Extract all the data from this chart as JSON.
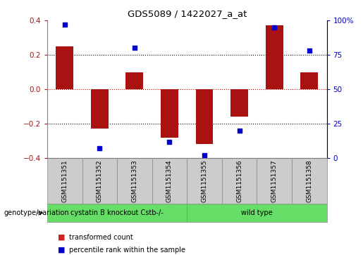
{
  "title": "GDS5089 / 1422027_a_at",
  "samples": [
    "GSM1151351",
    "GSM1151352",
    "GSM1151353",
    "GSM1151354",
    "GSM1151355",
    "GSM1151356",
    "GSM1151357",
    "GSM1151358"
  ],
  "transformed_count": [
    0.25,
    -0.23,
    0.1,
    -0.28,
    -0.32,
    -0.16,
    0.37,
    0.1
  ],
  "percentile_rank": [
    97,
    7,
    80,
    12,
    2,
    20,
    95,
    78
  ],
  "bar_color": "#aa1111",
  "scatter_color": "#0000cc",
  "ylim_left": [
    -0.4,
    0.4
  ],
  "ylim_right": [
    0,
    100
  ],
  "yticks_left": [
    -0.4,
    -0.2,
    0.0,
    0.2,
    0.4
  ],
  "yticks_right": [
    0,
    25,
    50,
    75,
    100
  ],
  "ytick_labels_right": [
    "0",
    "25",
    "50",
    "75",
    "100%"
  ],
  "group1_label": "cystatin B knockout Cstb-/-",
  "group2_label": "wild type",
  "group1_samples": 4,
  "group2_samples": 4,
  "group_row_label": "genotype/variation",
  "group_color": "#66dd66",
  "sample_box_color": "#cccccc",
  "legend_label1": "transformed count",
  "legend_label2": "percentile rank within the sample",
  "background_color": "#ffffff",
  "bar_color_legend": "#cc2222",
  "scatter_color_legend": "#0000cc",
  "zero_line_color": "#cc0000",
  "bar_width": 0.5,
  "scatter_size": 25
}
